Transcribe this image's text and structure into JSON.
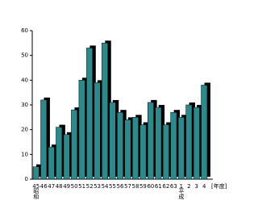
{
  "chart_data": {
    "type": "bar",
    "categories": [
      "45",
      "46",
      "47",
      "48",
      "49",
      "50",
      "51",
      "52",
      "53",
      "54",
      "55",
      "56",
      "57",
      "58",
      "59",
      "60",
      "61",
      "62",
      "63",
      "1",
      "2",
      "3",
      "4"
    ],
    "values": [
      5,
      32,
      13,
      21,
      18,
      28,
      40,
      53,
      39,
      55,
      31,
      27,
      24,
      25,
      22,
      31,
      29,
      22,
      27,
      25,
      30,
      29,
      38
    ],
    "color": "#2b8b8c",
    "shadow_color": "#000000",
    "ylim": [
      0,
      60
    ],
    "yticks": [
      0,
      10,
      20,
      30,
      40,
      50,
      60
    ],
    "x_axis_label": "[年度]",
    "era_labels": [
      {
        "index": 0,
        "label": "昭和"
      },
      {
        "index": 19,
        "label": "平成"
      }
    ]
  }
}
